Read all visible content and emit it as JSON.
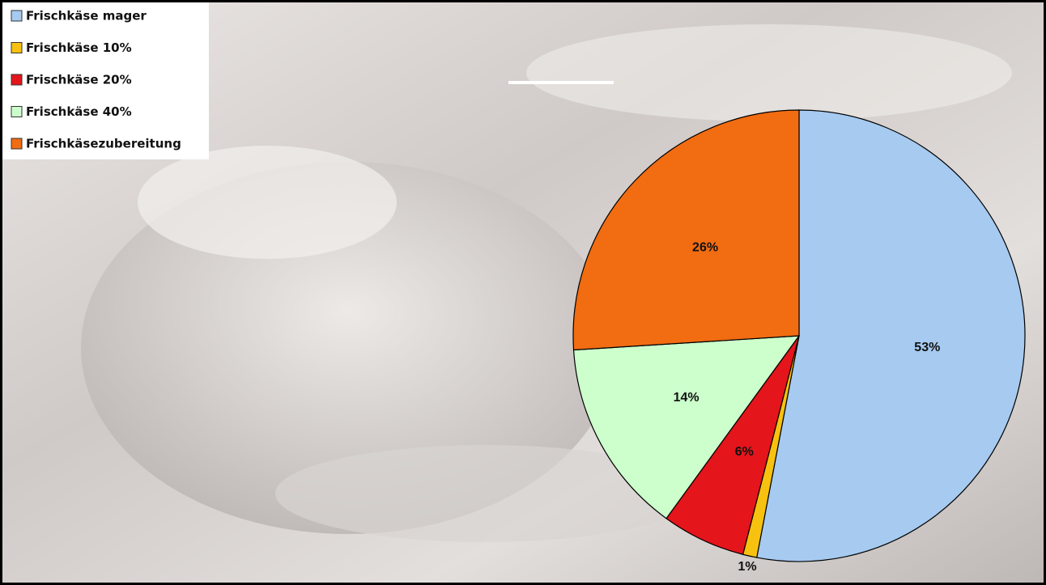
{
  "chart_data": {
    "type": "pie",
    "categories": [
      "Frischkäse mager",
      "Frischkäse 10%",
      "Frischkäse 20%",
      "Frischkäse 40%",
      "Frischkäsezubereitung"
    ],
    "values": [
      53,
      1,
      6,
      14,
      26
    ],
    "value_labels": [
      "53%",
      "1%",
      "6%",
      "14%",
      "26%"
    ],
    "colors": [
      "#a6caf0",
      "#f7c20f",
      "#e4151b",
      "#ccffcc",
      "#f26c12"
    ],
    "legend": "top-left"
  }
}
